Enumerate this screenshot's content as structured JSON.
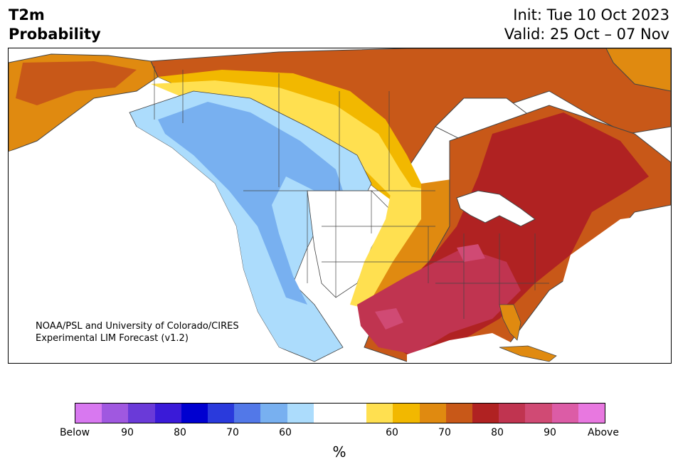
{
  "header": {
    "variable": "T2m",
    "product": "Probability",
    "init": "Init: Tue 10 Oct 2023",
    "valid": "Valid: 25 Oct – 07 Nov"
  },
  "credit": {
    "line1": "NOAA/PSL and University of Colorado/CIRES",
    "line2": "Experimental LIM Forecast (v1.2)"
  },
  "colorbar": {
    "colors": [
      "#d878f0",
      "#a058e0",
      "#6a3ad8",
      "#3a1ad8",
      "#0000d0",
      "#2a3adc",
      "#5278e8",
      "#78b0f0",
      "#acdcfc",
      "#ffffff",
      "#ffffff",
      "#ffe050",
      "#f2b800",
      "#e08a10",
      "#c85818",
      "#b02222",
      "#c03450",
      "#d04a74",
      "#dc5ca6",
      "#e878e0"
    ],
    "tick_labels": [
      "Below",
      "90",
      "80",
      "70",
      "60",
      "60",
      "70",
      "80",
      "90",
      "Above"
    ],
    "unit": "%"
  },
  "map": {
    "legend_colors": {
      "below_60": "#acdcfc",
      "below_70": "#78b0f0",
      "below_80": "#5278e8",
      "near": "#ffffff",
      "above_55": "#ffe050",
      "above_60": "#f2b800",
      "above_65": "#e08a10",
      "above_70": "#c85818",
      "above_80": "#b02222",
      "above_85": "#c03450",
      "above_90": "#d04a74"
    }
  }
}
